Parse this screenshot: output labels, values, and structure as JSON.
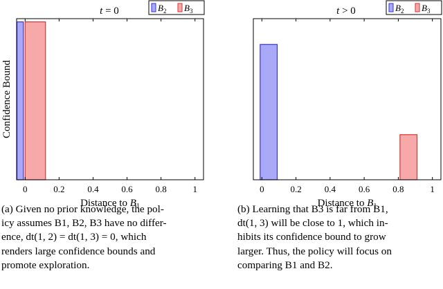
{
  "chart_data": [
    {
      "type": "bar",
      "title": "t = 0",
      "xlabel": "Distance to B1",
      "ylabel": "Confidence Bound",
      "xlim": [
        -0.05,
        1.05
      ],
      "xticks": [
        "0",
        "0.2",
        "0.4",
        "0.6",
        "0.8",
        "1"
      ],
      "ylim": [
        0,
        1
      ],
      "legend_position": "top-right",
      "series": [
        {
          "name": "B2",
          "color": "#a9a9f7",
          "edge": "#3333dd",
          "bars": [
            {
              "x0": -0.05,
              "x1": -0.01,
              "value": 0.98
            }
          ]
        },
        {
          "name": "B3",
          "color": "#f7a9a9",
          "edge": "#dd3333",
          "bars": [
            {
              "x0": 0.0,
              "x1": 0.12,
              "value": 0.98
            }
          ]
        }
      ]
    },
    {
      "type": "bar",
      "title": "t > 0",
      "xlabel": "Distance to B1",
      "ylabel": "",
      "xlim": [
        -0.05,
        1.05
      ],
      "xticks": [
        "0",
        "0.2",
        "0.4",
        "0.6",
        "0.8",
        "1"
      ],
      "ylim": [
        0,
        1
      ],
      "legend_position": "top-right",
      "series": [
        {
          "name": "B2",
          "color": "#a9a9f7",
          "edge": "#3333dd",
          "bars": [
            {
              "x0": -0.01,
              "x1": 0.09,
              "value": 0.84
            }
          ]
        },
        {
          "name": "B3",
          "color": "#f7a9a9",
          "edge": "#dd3333",
          "bars": [
            {
              "x0": 0.81,
              "x1": 0.91,
              "value": 0.28
            }
          ]
        }
      ]
    }
  ],
  "captions": {
    "a": [
      "(a) Given no prior knowledge, the pol-",
      "icy assumes B1, B2, B3 have no differ-",
      "ence, dt(1, 2) = dt(1, 3) = 0, which",
      "renders large confidence bounds and",
      "promote exploration."
    ],
    "b": [
      "(b) Learning that B3 is far from B1,",
      "dt(1, 3) will be close to 1, which in-",
      "hibits its confidence bound to grow",
      "larger. Thus, the policy will focus on",
      "comparing B1 and B2."
    ]
  }
}
